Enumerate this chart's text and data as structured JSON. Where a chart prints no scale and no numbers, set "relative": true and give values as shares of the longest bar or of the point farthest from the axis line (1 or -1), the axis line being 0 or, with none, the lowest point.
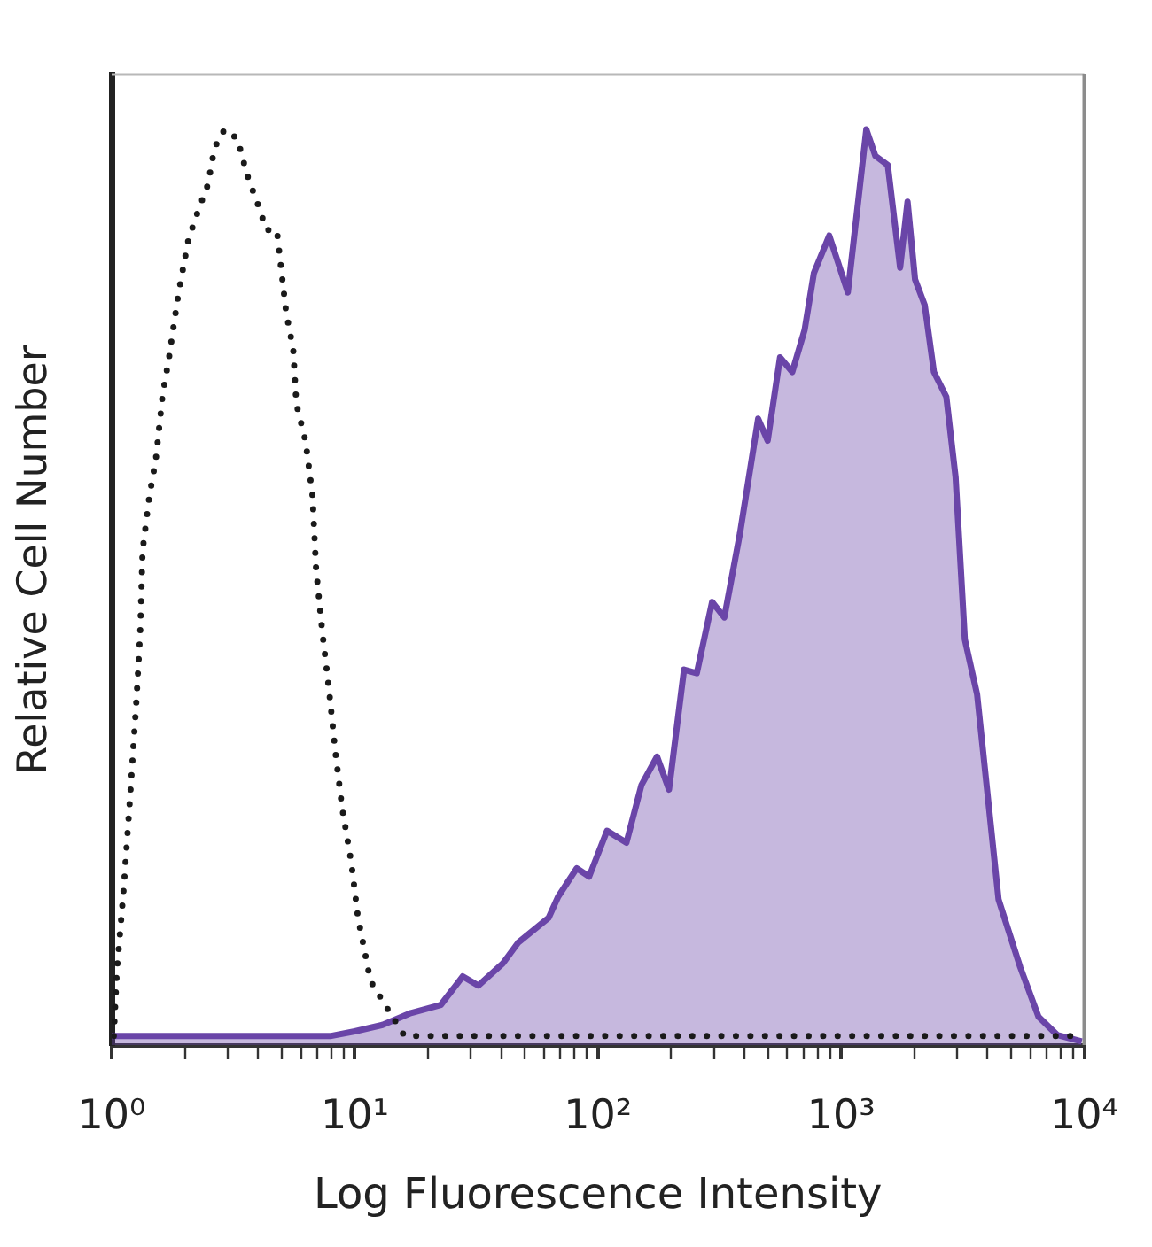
{
  "chart_data": {
    "type": "area",
    "xlabel": "Log Fluorescence Intensity",
    "ylabel": "Relative Cell Number",
    "log": "x",
    "relative": true,
    "grid": false,
    "legend": false,
    "marker": "none",
    "line_style": "solid",
    "xlim": [
      1,
      10000
    ],
    "xticks": [
      {
        "value": 1,
        "label": "10⁰"
      },
      {
        "value": 2,
        "label": null
      },
      {
        "value": 3,
        "label": null
      },
      {
        "value": 4,
        "label": null
      },
      {
        "value": 5,
        "label": null
      },
      {
        "value": 6,
        "label": null
      },
      {
        "value": 7,
        "label": null
      },
      {
        "value": 8,
        "label": null
      },
      {
        "value": 9,
        "label": null
      },
      {
        "value": 10,
        "label": "10¹"
      },
      {
        "value": 20,
        "label": null
      },
      {
        "value": 30,
        "label": null
      },
      {
        "value": 40,
        "label": null
      },
      {
        "value": 50,
        "label": null
      },
      {
        "value": 60,
        "label": null
      },
      {
        "value": 70,
        "label": null
      },
      {
        "value": 80,
        "label": null
      },
      {
        "value": 90,
        "label": null
      },
      {
        "value": 100,
        "label": "10²"
      },
      {
        "value": 200,
        "label": null
      },
      {
        "value": 300,
        "label": null
      },
      {
        "value": 400,
        "label": null
      },
      {
        "value": 500,
        "label": null
      },
      {
        "value": 600,
        "label": null
      },
      {
        "value": 700,
        "label": null
      },
      {
        "value": 800,
        "label": null
      },
      {
        "value": 900,
        "label": null
      },
      {
        "value": 1000,
        "label": "10³"
      },
      {
        "value": 2000,
        "label": null
      },
      {
        "value": 3000,
        "label": null
      },
      {
        "value": 4000,
        "label": null
      },
      {
        "value": 5000,
        "label": null
      },
      {
        "value": 6000,
        "label": null
      },
      {
        "value": 7000,
        "label": null
      },
      {
        "value": 8000,
        "label": null
      },
      {
        "value": 9000,
        "label": null
      },
      {
        "value": 10000,
        "label": "10⁴"
      }
    ],
    "series": [
      {
        "type": "line",
        "line_style": "dotted",
        "color": "#1a1a1a",
        "x": [
          1.02,
          1.05,
          1.12,
          1.19,
          1.26,
          1.31,
          1.34,
          1.43,
          1.52,
          1.62,
          1.72,
          1.88,
          2.07,
          2.26,
          2.49,
          2.65,
          2.91,
          3.29,
          3.61,
          3.97,
          4.34,
          4.78,
          4.92,
          5.22,
          5.58,
          5.75,
          6.27,
          6.7,
          6.93,
          7.36,
          7.82,
          8.32,
          8.86,
          9.67,
          10.3,
          11.6,
          13.6,
          16,
          25,
          50,
          100,
          300,
          1000,
          3000,
          10000
        ],
        "values": [
          0.01,
          0.08,
          0.17,
          0.27,
          0.37,
          0.45,
          0.54,
          0.6,
          0.64,
          0.71,
          0.75,
          0.82,
          0.88,
          0.91,
          0.94,
          0.98,
          1.0,
          0.99,
          0.95,
          0.92,
          0.89,
          0.89,
          0.86,
          0.8,
          0.76,
          0.7,
          0.66,
          0.6,
          0.52,
          0.45,
          0.39,
          0.32,
          0.26,
          0.2,
          0.14,
          0.07,
          0.04,
          0.01,
          0.01,
          0.01,
          0.01,
          0.01,
          0.01,
          0.01,
          0.01
        ]
      },
      {
        "color": "#6a45a8",
        "x": [
          1,
          5,
          8,
          10,
          13,
          17,
          22.6,
          27.8,
          32.2,
          40.6,
          47,
          62.7,
          68.6,
          81.8,
          92,
          109,
          131,
          151,
          175,
          196,
          226,
          255,
          295,
          331,
          384,
          456,
          499,
          561,
          630,
          708,
          773,
          894,
          1066,
          1270,
          1384,
          1556,
          1749,
          1877,
          2015,
          2208,
          2409,
          2709,
          2958,
          3228,
          3626,
          4443,
          5457,
          6485,
          7745,
          9770
        ],
        "values": [
          0.01,
          0.01,
          0.01,
          0.015,
          0.022,
          0.035,
          0.044,
          0.075,
          0.065,
          0.089,
          0.112,
          0.139,
          0.162,
          0.193,
          0.184,
          0.234,
          0.221,
          0.284,
          0.315,
          0.279,
          0.41,
          0.406,
          0.484,
          0.467,
          0.559,
          0.684,
          0.66,
          0.751,
          0.735,
          0.781,
          0.843,
          0.884,
          0.822,
          1.0,
          0.971,
          0.961,
          0.849,
          0.921,
          0.836,
          0.808,
          0.735,
          0.708,
          0.62,
          0.443,
          0.383,
          0.159,
          0.085,
          0.031,
          0.011,
          0.004
        ]
      }
    ]
  }
}
